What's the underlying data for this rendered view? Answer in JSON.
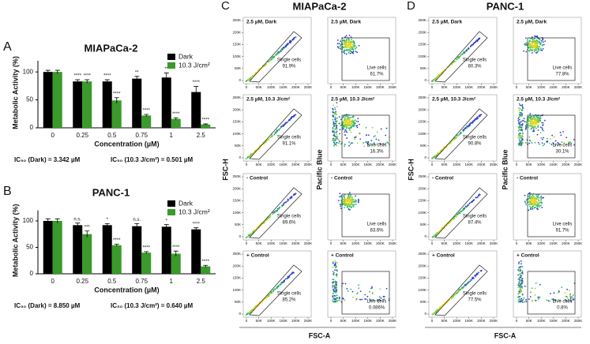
{
  "chart_data": [
    {
      "type": "bar",
      "panel_label": "A",
      "title": "MIAPaCa-2",
      "ylabel": "Metabolic Activity (%)",
      "xlabel": "Concentration (µM)",
      "categories": [
        "0",
        "0.25",
        "0.5",
        "0.75",
        "1",
        "2.5"
      ],
      "series": [
        {
          "name": "Dark",
          "color": "#000000",
          "values": [
            100,
            83,
            83,
            88,
            90,
            64
          ],
          "errors": [
            3,
            3,
            3,
            4,
            8,
            10
          ],
          "significance": [
            null,
            "****",
            "****",
            "**",
            "**",
            "****"
          ]
        },
        {
          "name": "10.3 J/cm²",
          "color": "#3a9a2a",
          "values": [
            100,
            83,
            49,
            22,
            16,
            6
          ],
          "errors": [
            3,
            3,
            5,
            2,
            2,
            1
          ],
          "significance": [
            null,
            "****",
            "****",
            "****",
            "****",
            "****"
          ]
        }
      ],
      "ylim": [
        0,
        120
      ],
      "yticks": [
        0,
        50,
        100
      ],
      "notes": [
        "IC₅₀ (Dark) = 3.342 µM",
        "IC₅₀ (10.3 J/cm²) = 0.501 µM"
      ]
    },
    {
      "type": "bar",
      "panel_label": "B",
      "title": "PANC-1",
      "ylabel": "Metabolic Activity (%)",
      "xlabel": "Concentration (µM)",
      "categories": [
        "0",
        "0.25",
        "0.5",
        "0.75",
        "1",
        "2.5"
      ],
      "series": [
        {
          "name": "Dark",
          "color": "#000000",
          "values": [
            100,
            92,
            92,
            90,
            89,
            84
          ],
          "errors": [
            4,
            4,
            3,
            5,
            4,
            3
          ],
          "significance": [
            null,
            "n.s.",
            "*",
            "n.s.",
            "*",
            "****"
          ]
        },
        {
          "name": "10.3 J/cm²",
          "color": "#3a9a2a",
          "values": [
            100,
            75,
            54,
            40,
            38,
            14
          ],
          "errors": [
            4,
            6,
            2,
            2,
            5,
            2
          ],
          "significance": [
            null,
            "***",
            "****",
            "****",
            "****",
            "****"
          ]
        }
      ],
      "ylim": [
        0,
        120
      ],
      "yticks": [
        0,
        50,
        100
      ],
      "notes": [
        "IC₅₀ (Dark) = 8.850 µM",
        "IC₅₀ (10.3 J/cm²) = 0.640 µM"
      ]
    }
  ],
  "flow": {
    "axis_ticks": [
      0,
      {
        "value": 50000,
        "label": "50K"
      },
      {
        "value": 100000,
        "label": "100K"
      },
      {
        "value": 150000,
        "label": "150K"
      },
      {
        "value": 200000,
        "label": "200K"
      },
      {
        "value": 250000,
        "label": "250K"
      }
    ],
    "ylabel_single": "FSC-H",
    "ylabel_live": "Pacific Blue",
    "xlabel": "FSC-A",
    "panels": [
      {
        "label": "C",
        "title": "MIAPaCa-2",
        "rows": [
          {
            "condition": "2.5 µM, Dark",
            "single": {
              "gate": "Single cells",
              "pct": "91.9%"
            },
            "live": {
              "gate": "Live cells",
              "pct": "61.7%"
            }
          },
          {
            "condition": "2.5 µM, 10.3 J/cm²",
            "single": {
              "gate": "Single cells",
              "pct": "91.1%"
            },
            "live": {
              "gate": "Live cells",
              "pct": "16.3%"
            }
          },
          {
            "condition": "- Control",
            "single": {
              "gate": "Single cells",
              "pct": "89.6%"
            },
            "live": {
              "gate": "Live cells",
              "pct": "83.6%"
            }
          },
          {
            "condition": "+ Control",
            "single": {
              "gate": "Single cells",
              "pct": "85.2%"
            },
            "live": {
              "gate": "Live cells",
              "pct": "0.086%"
            }
          }
        ]
      },
      {
        "label": "D",
        "title": "PANC-1",
        "rows": [
          {
            "condition": "2.5 µM, Dark",
            "single": {
              "gate": "Single cells",
              "pct": "80.3%"
            },
            "live": {
              "gate": "Live cells",
              "pct": "77.8%"
            }
          },
          {
            "condition": "2.5 µM, 10.3 J/cm²",
            "single": {
              "gate": "Single cells",
              "pct": "90.8%"
            },
            "live": {
              "gate": "Live cells",
              "pct": "30.1%"
            }
          },
          {
            "condition": "- Control",
            "single": {
              "gate": "Single cells",
              "pct": "87.4%"
            },
            "live": {
              "gate": "Live cells",
              "pct": "91.7%"
            }
          },
          {
            "condition": "+ Control",
            "single": {
              "gate": "Single cells",
              "pct": "77.5%"
            },
            "live": {
              "gate": "Live cells",
              "pct": "0.8%"
            }
          }
        ]
      }
    ]
  }
}
